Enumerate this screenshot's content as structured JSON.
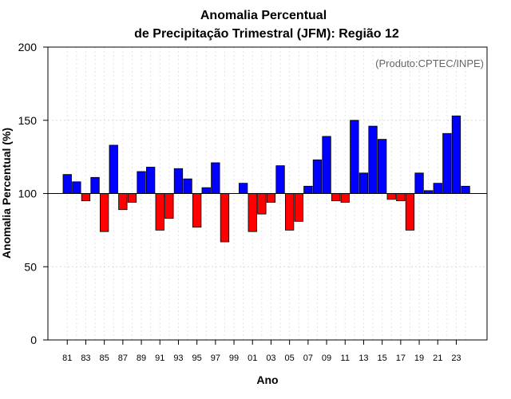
{
  "chart_data": {
    "type": "bar",
    "title_line1": "Anomalia Percentual",
    "title_line2": "de Precipitação Trimestral (JFM): Região 12",
    "credit": "(Produto:CPTEC/INPE)",
    "xlabel": "Ano",
    "ylabel": "Anomalia Percentual (%)",
    "ylim": [
      0,
      200
    ],
    "yticks": [
      "0",
      "50",
      "100",
      "150",
      "200"
    ],
    "baseline": 100,
    "grid": true,
    "colors": {
      "above": "#0000ff",
      "below": "#ff0000"
    },
    "categories": [
      "81",
      "82",
      "83",
      "84",
      "85",
      "86",
      "87",
      "88",
      "89",
      "90",
      "91",
      "92",
      "93",
      "94",
      "95",
      "96",
      "97",
      "98",
      "99",
      "00",
      "01",
      "02",
      "03",
      "04",
      "05",
      "06",
      "07",
      "08",
      "09",
      "10",
      "11",
      "12",
      "13",
      "14",
      "15",
      "16",
      "17",
      "18",
      "19",
      "20",
      "21",
      "22",
      "23",
      "24"
    ],
    "xtick_labels": [
      "81",
      "83",
      "85",
      "87",
      "89",
      "91",
      "93",
      "95",
      "97",
      "99",
      "01",
      "03",
      "05",
      "07",
      "09",
      "11",
      "13",
      "15",
      "17",
      "19",
      "21",
      "23"
    ],
    "values": [
      113,
      108,
      95,
      111,
      74,
      133,
      89,
      94,
      115,
      118,
      75,
      83,
      117,
      110,
      77,
      104,
      121,
      67,
      100,
      107,
      74,
      86,
      94,
      119,
      75,
      81,
      105,
      123,
      139,
      95,
      94,
      150,
      114,
      146,
      137,
      96,
      95,
      75,
      114,
      102,
      107,
      141,
      153,
      105
    ]
  }
}
